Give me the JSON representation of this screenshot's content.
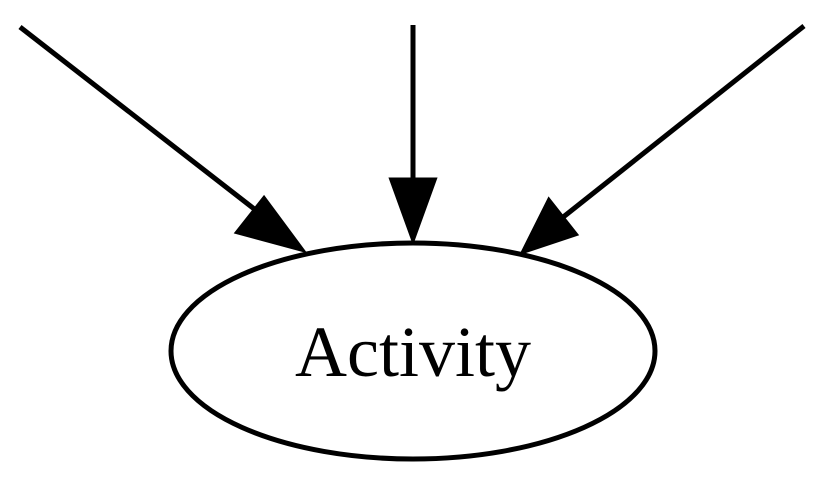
{
  "diagram": {
    "node": {
      "label": "Activity"
    },
    "incoming_edges": 3
  }
}
